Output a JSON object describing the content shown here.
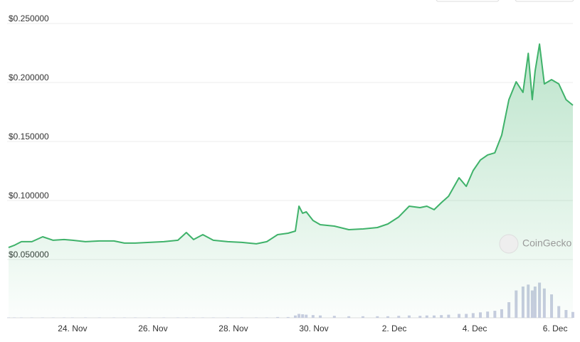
{
  "chart_data": {
    "type": "area",
    "watermark": "CoinGecko",
    "x": [
      -1.59,
      -1.45,
      -1.27,
      -1.01,
      -0.74,
      -0.48,
      -0.21,
      0,
      0.32,
      0.67,
      1.03,
      1.29,
      1.56,
      1.91,
      2.27,
      2.62,
      2.83,
      3.01,
      3.24,
      3.5,
      3.86,
      4.21,
      4.57,
      4.83,
      5.1,
      5.36,
      5.54,
      5.63,
      5.72,
      5.81,
      5.98,
      6.16,
      6.51,
      6.87,
      7.22,
      7.58,
      7.84,
      8.11,
      8.37,
      8.64,
      8.81,
      8.99,
      9.17,
      9.35,
      9.61,
      9.79,
      9.96,
      10.14,
      10.32,
      10.5,
      10.67,
      10.85,
      11.03,
      11.2,
      11.33,
      11.43,
      11.5,
      11.61,
      11.73,
      11.91,
      12.09,
      12.27,
      12.44
    ],
    "values": [
      0.0602,
      0.062,
      0.0651,
      0.0651,
      0.0693,
      0.0663,
      0.0669,
      0.0663,
      0.0651,
      0.0657,
      0.0657,
      0.0639,
      0.0639,
      0.0645,
      0.0651,
      0.0663,
      0.0729,
      0.0669,
      0.0711,
      0.0663,
      0.0651,
      0.0645,
      0.0633,
      0.0651,
      0.0711,
      0.0723,
      0.0741,
      0.0952,
      0.0892,
      0.0904,
      0.0831,
      0.0795,
      0.0783,
      0.0753,
      0.0759,
      0.0771,
      0.0801,
      0.0861,
      0.0952,
      0.094,
      0.0952,
      0.0922,
      0.0982,
      0.1036,
      0.1193,
      0.112,
      0.1253,
      0.1343,
      0.1386,
      0.1404,
      0.1554,
      0.1855,
      0.2006,
      0.1916,
      0.2247,
      0.1855,
      0.2096,
      0.2325,
      0.1988,
      0.2024,
      0.1988,
      0.1855,
      0.1807
    ],
    "volume": [
      1,
      1,
      1,
      1,
      1,
      1,
      1,
      1,
      1,
      1,
      1,
      1,
      1,
      1,
      1,
      1,
      1,
      1,
      1,
      1,
      1,
      1,
      1,
      1,
      2,
      2,
      6,
      10,
      9,
      8,
      7,
      6,
      5,
      4,
      4,
      4,
      4,
      5,
      6,
      5,
      6,
      6,
      7,
      8,
      10,
      10,
      12,
      14,
      16,
      18,
      22,
      40,
      70,
      80,
      85,
      70,
      80,
      90,
      75,
      60,
      30,
      20,
      15
    ],
    "volume_lim": [
      0,
      100
    ],
    "color": "#3fb26a",
    "volume_color": "#c8cde0",
    "xlim": [
      -1.59,
      12.44
    ],
    "xticks": [
      {
        "value": 0,
        "label": "24. Nov"
      },
      {
        "value": 2,
        "label": "26. Nov"
      },
      {
        "value": 4,
        "label": "28. Nov"
      },
      {
        "value": 6,
        "label": "30. Nov"
      },
      {
        "value": 8,
        "label": "2. Dec"
      },
      {
        "value": 10,
        "label": "4. Dec"
      },
      {
        "value": 12,
        "label": "6. Dec"
      }
    ],
    "ylim": [
      0,
      0.25
    ],
    "yticks": [
      {
        "value": 0.05,
        "label": "$0.050000"
      },
      {
        "value": 0.1,
        "label": "$0.100000"
      },
      {
        "value": 0.15,
        "label": "$0.150000"
      },
      {
        "value": 0.2,
        "label": "$0.200000"
      },
      {
        "value": 0.25,
        "label": "$0.250000"
      }
    ],
    "grid": true
  }
}
